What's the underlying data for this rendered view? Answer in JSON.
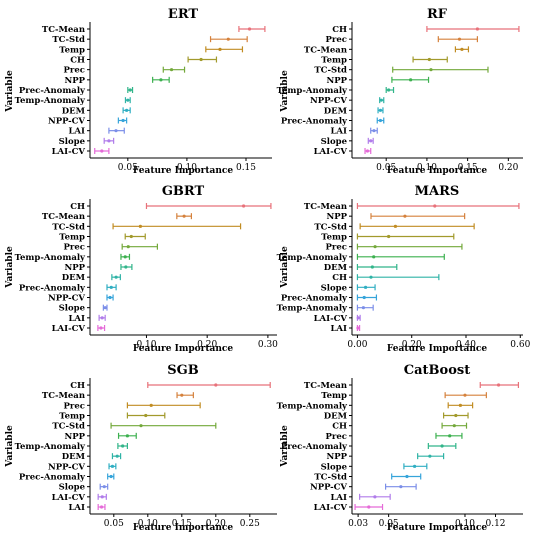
{
  "figure": {
    "panels": [
      {
        "key": "ert",
        "title": "ERT",
        "xlabel": "Feature Importance",
        "ylabel": "Variable"
      },
      {
        "key": "rf",
        "title": "RF",
        "xlabel": "Feature Importance",
        "ylabel": "Variable"
      },
      {
        "key": "gbrt",
        "title": "GBRT",
        "xlabel": "Feature Importance",
        "ylabel": "Variable"
      },
      {
        "key": "mars",
        "title": "MARS",
        "xlabel": "Feature Importance",
        "ylabel": "Variable"
      },
      {
        "key": "sgb",
        "title": "SGB",
        "xlabel": "Feature Importance",
        "ylabel": "Variable"
      },
      {
        "key": "catboost",
        "title": "CatBoost",
        "xlabel": "Feature Importance",
        "ylabel": "Variable"
      }
    ]
  },
  "chart_data": [
    {
      "type": "errorbar",
      "title": "ERT",
      "xlabel": "Feature Importance",
      "ylabel": "Variable",
      "xlim": [
        0.018,
        0.172
      ],
      "xticks": [
        0.05,
        0.1,
        0.15
      ],
      "xtick_labels": [
        "0.05",
        "0.10",
        "0.15"
      ],
      "points": [
        {
          "variable": "TC-Mean",
          "mean": 0.153,
          "low": 0.144,
          "high": 0.166,
          "color": "#E8727A"
        },
        {
          "variable": "TC-Std",
          "mean": 0.135,
          "low": 0.12,
          "high": 0.151,
          "color": "#D5813C"
        },
        {
          "variable": "Temp",
          "mean": 0.128,
          "low": 0.116,
          "high": 0.147,
          "color": "#C18C22"
        },
        {
          "variable": "CH",
          "mean": 0.112,
          "low": 0.101,
          "high": 0.125,
          "color": "#A29A2C"
        },
        {
          "variable": "Prec",
          "mean": 0.087,
          "low": 0.08,
          "high": 0.098,
          "color": "#73A83A"
        },
        {
          "variable": "NPP",
          "mean": 0.078,
          "low": 0.071,
          "high": 0.085,
          "color": "#3CB04F"
        },
        {
          "variable": "Prec-Anomaly",
          "mean": 0.052,
          "low": 0.05,
          "high": 0.054,
          "color": "#32B58A"
        },
        {
          "variable": "Temp-Anomaly",
          "mean": 0.05,
          "low": 0.048,
          "high": 0.052,
          "color": "#2FB3A6"
        },
        {
          "variable": "DEM",
          "mean": 0.049,
          "low": 0.046,
          "high": 0.052,
          "color": "#2FAEC2"
        },
        {
          "variable": "NPP-CV",
          "mean": 0.046,
          "low": 0.042,
          "high": 0.049,
          "color": "#36A4DA"
        },
        {
          "variable": "LAI",
          "mean": 0.04,
          "low": 0.034,
          "high": 0.047,
          "color": "#7B8EE8"
        },
        {
          "variable": "Slope",
          "mean": 0.034,
          "low": 0.03,
          "high": 0.038,
          "color": "#B07CEA"
        },
        {
          "variable": "LAI-CV",
          "mean": 0.028,
          "low": 0.022,
          "high": 0.034,
          "color": "#E56BD8"
        }
      ]
    },
    {
      "type": "errorbar",
      "title": "RF",
      "xlabel": "Feature Importance",
      "ylabel": "Variable",
      "xlim": [
        0.008,
        0.218
      ],
      "xticks": [
        0.05,
        0.1,
        0.15,
        0.2
      ],
      "xtick_labels": [
        "0.05",
        "0.10",
        "0.15",
        "0.20"
      ],
      "points": [
        {
          "variable": "CH",
          "mean": 0.162,
          "low": 0.1,
          "high": 0.213,
          "color": "#E8727A"
        },
        {
          "variable": "Prec",
          "mean": 0.14,
          "low": 0.114,
          "high": 0.162,
          "color": "#D5813C"
        },
        {
          "variable": "TC-Mean",
          "mean": 0.143,
          "low": 0.135,
          "high": 0.151,
          "color": "#C18C22"
        },
        {
          "variable": "Temp",
          "mean": 0.103,
          "low": 0.083,
          "high": 0.125,
          "color": "#A29A2C"
        },
        {
          "variable": "TC-Std",
          "mean": 0.105,
          "low": 0.058,
          "high": 0.175,
          "color": "#73A83A"
        },
        {
          "variable": "NPP",
          "mean": 0.08,
          "low": 0.057,
          "high": 0.102,
          "color": "#3CB04F"
        },
        {
          "variable": "Temp-Anomaly",
          "mean": 0.053,
          "low": 0.05,
          "high": 0.059,
          "color": "#32B58A"
        },
        {
          "variable": "NPP-CV",
          "mean": 0.044,
          "low": 0.042,
          "high": 0.047,
          "color": "#2FB3A6"
        },
        {
          "variable": "DEM",
          "mean": 0.043,
          "low": 0.04,
          "high": 0.046,
          "color": "#2FAEC2"
        },
        {
          "variable": "Prec-Anomaly",
          "mean": 0.043,
          "low": 0.039,
          "high": 0.047,
          "color": "#36A4DA"
        },
        {
          "variable": "LAI",
          "mean": 0.035,
          "low": 0.031,
          "high": 0.039,
          "color": "#7B8EE8"
        },
        {
          "variable": "Slope",
          "mean": 0.031,
          "low": 0.028,
          "high": 0.034,
          "color": "#B07CEA"
        },
        {
          "variable": "LAI-CV",
          "mean": 0.027,
          "low": 0.024,
          "high": 0.031,
          "color": "#E56BD8"
        }
      ]
    },
    {
      "type": "errorbar",
      "title": "GBRT",
      "xlabel": "Feature Importance",
      "ylabel": "Variable",
      "xlim": [
        0.007,
        0.315
      ],
      "xticks": [
        0.1,
        0.2,
        0.3
      ],
      "xtick_labels": [
        "0.10",
        "0.20",
        "0.30"
      ],
      "points": [
        {
          "variable": "CH",
          "mean": 0.26,
          "low": 0.1,
          "high": 0.305,
          "color": "#E8727A"
        },
        {
          "variable": "TC-Mean",
          "mean": 0.162,
          "low": 0.15,
          "high": 0.174,
          "color": "#D5813C"
        },
        {
          "variable": "TC-Std",
          "mean": 0.09,
          "low": 0.045,
          "high": 0.255,
          "color": "#C18C22"
        },
        {
          "variable": "Temp",
          "mean": 0.075,
          "low": 0.065,
          "high": 0.098,
          "color": "#A29A2C"
        },
        {
          "variable": "Prec",
          "mean": 0.07,
          "low": 0.06,
          "high": 0.118,
          "color": "#73A83A"
        },
        {
          "variable": "Temp-Anomaly",
          "mean": 0.065,
          "low": 0.058,
          "high": 0.072,
          "color": "#3CB04F"
        },
        {
          "variable": "NPP",
          "mean": 0.066,
          "low": 0.058,
          "high": 0.076,
          "color": "#32B58A"
        },
        {
          "variable": "DEM",
          "mean": 0.05,
          "low": 0.043,
          "high": 0.057,
          "color": "#2FB3A6"
        },
        {
          "variable": "Prec-Anomaly",
          "mean": 0.042,
          "low": 0.035,
          "high": 0.05,
          "color": "#2FAEC2"
        },
        {
          "variable": "NPP-CV",
          "mean": 0.04,
          "low": 0.035,
          "high": 0.045,
          "color": "#36A4DA"
        },
        {
          "variable": "Slope",
          "mean": 0.032,
          "low": 0.029,
          "high": 0.035,
          "color": "#7B8EE8"
        },
        {
          "variable": "LAI",
          "mean": 0.027,
          "low": 0.022,
          "high": 0.032,
          "color": "#B07CEA"
        },
        {
          "variable": "LAI-CV",
          "mean": 0.025,
          "low": 0.02,
          "high": 0.031,
          "color": "#E56BD8"
        }
      ]
    },
    {
      "type": "errorbar",
      "title": "MARS",
      "xlabel": "Feature Importance",
      "ylabel": "Variable",
      "xlim": [
        -0.02,
        0.61
      ],
      "xticks": [
        0.0,
        0.2,
        0.4,
        0.6
      ],
      "xtick_labels": [
        "0.00",
        "0.20",
        "0.40",
        "0.60"
      ],
      "points": [
        {
          "variable": "TC-Mean",
          "mean": 0.285,
          "low": 0.0,
          "high": 0.595,
          "color": "#E8727A"
        },
        {
          "variable": "NPP",
          "mean": 0.175,
          "low": 0.05,
          "high": 0.395,
          "color": "#D5813C"
        },
        {
          "variable": "TC-Std",
          "mean": 0.14,
          "low": 0.01,
          "high": 0.43,
          "color": "#C18C22"
        },
        {
          "variable": "Temp",
          "mean": 0.115,
          "low": 0.0,
          "high": 0.355,
          "color": "#A29A2C"
        },
        {
          "variable": "Prec",
          "mean": 0.065,
          "low": 0.0,
          "high": 0.385,
          "color": "#73A83A"
        },
        {
          "variable": "Temp-Anomaly",
          "mean": 0.06,
          "low": 0.0,
          "high": 0.32,
          "color": "#3CB04F"
        },
        {
          "variable": "DEM",
          "mean": 0.055,
          "low": 0.0,
          "high": 0.145,
          "color": "#32B58A"
        },
        {
          "variable": "CH",
          "mean": 0.05,
          "low": 0.0,
          "high": 0.3,
          "color": "#2FB3A6"
        },
        {
          "variable": "Slope",
          "mean": 0.03,
          "low": 0.0,
          "high": 0.065,
          "color": "#2FAEC2"
        },
        {
          "variable": "Prec-Anomaly",
          "mean": 0.025,
          "low": 0.0,
          "high": 0.07,
          "color": "#36A4DA"
        },
        {
          "variable": "Temp-Anomaly",
          "mean": 0.022,
          "low": 0.0,
          "high": 0.058,
          "color": "#7B8EE8"
        },
        {
          "variable": "LAI-CV",
          "mean": 0.003,
          "low": 0.0,
          "high": 0.01,
          "color": "#B07CEA"
        },
        {
          "variable": "LAI",
          "mean": 0.002,
          "low": 0.0,
          "high": 0.008,
          "color": "#E56BD8"
        }
      ]
    },
    {
      "type": "errorbar",
      "title": "SGB",
      "xlabel": "Feature Importance",
      "ylabel": "Variable",
      "xlim": [
        0.015,
        0.29
      ],
      "xticks": [
        0.05,
        0.1,
        0.15,
        0.2,
        0.25
      ],
      "xtick_labels": [
        "0.05",
        "0.10",
        "0.15",
        "0.20",
        "0.25"
      ],
      "points": [
        {
          "variable": "CH",
          "mean": 0.2,
          "low": 0.1,
          "high": 0.28,
          "color": "#E8727A"
        },
        {
          "variable": "TC-Mean",
          "mean": 0.15,
          "low": 0.143,
          "high": 0.167,
          "color": "#D5813C"
        },
        {
          "variable": "Prec",
          "mean": 0.105,
          "low": 0.07,
          "high": 0.177,
          "color": "#C18C22"
        },
        {
          "variable": "Temp",
          "mean": 0.097,
          "low": 0.07,
          "high": 0.125,
          "color": "#A29A2C"
        },
        {
          "variable": "TC-Std",
          "mean": 0.09,
          "low": 0.046,
          "high": 0.2,
          "color": "#73A83A"
        },
        {
          "variable": "NPP",
          "mean": 0.07,
          "low": 0.057,
          "high": 0.083,
          "color": "#3CB04F"
        },
        {
          "variable": "Temp-Anomaly",
          "mean": 0.063,
          "low": 0.056,
          "high": 0.07,
          "color": "#32B58A"
        },
        {
          "variable": "DEM",
          "mean": 0.055,
          "low": 0.048,
          "high": 0.06,
          "color": "#2FB3A6"
        },
        {
          "variable": "NPP-CV",
          "mean": 0.048,
          "low": 0.043,
          "high": 0.053,
          "color": "#2FAEC2"
        },
        {
          "variable": "Prec-Anomaly",
          "mean": 0.046,
          "low": 0.041,
          "high": 0.05,
          "color": "#36A4DA"
        },
        {
          "variable": "Slope",
          "mean": 0.036,
          "low": 0.03,
          "high": 0.041,
          "color": "#7B8EE8"
        },
        {
          "variable": "LAI-CV",
          "mean": 0.033,
          "low": 0.027,
          "high": 0.039,
          "color": "#B07CEA"
        },
        {
          "variable": "LAI",
          "mean": 0.032,
          "low": 0.027,
          "high": 0.037,
          "color": "#E56BD8"
        }
      ]
    },
    {
      "type": "errorbar",
      "title": "CatBoost",
      "xlabel": "Feature Importance",
      "ylabel": "Variable",
      "xlim": [
        0.026,
        0.138
      ],
      "xticks": [
        0.03,
        0.05,
        0.1,
        0.12
      ],
      "xtick_labels": [
        "0.03",
        "0.05",
        "0.10",
        "0.12"
      ],
      "points": [
        {
          "variable": "TC-Mean",
          "mean": 0.122,
          "low": 0.11,
          "high": 0.135,
          "color": "#E8727A"
        },
        {
          "variable": "Temp",
          "mean": 0.1,
          "low": 0.087,
          "high": 0.114,
          "color": "#D5813C"
        },
        {
          "variable": "Temp-Anomaly",
          "mean": 0.097,
          "low": 0.089,
          "high": 0.105,
          "color": "#C18C22"
        },
        {
          "variable": "DEM",
          "mean": 0.094,
          "low": 0.086,
          "high": 0.102,
          "color": "#A29A2C"
        },
        {
          "variable": "CH",
          "mean": 0.093,
          "low": 0.085,
          "high": 0.101,
          "color": "#73A83A"
        },
        {
          "variable": "Prec",
          "mean": 0.09,
          "low": 0.081,
          "high": 0.098,
          "color": "#3CB04F"
        },
        {
          "variable": "Prec-Anomaly",
          "mean": 0.085,
          "low": 0.076,
          "high": 0.094,
          "color": "#32B58A"
        },
        {
          "variable": "NPP",
          "mean": 0.077,
          "low": 0.069,
          "high": 0.086,
          "color": "#2FB3A6"
        },
        {
          "variable": "Slope",
          "mean": 0.067,
          "low": 0.06,
          "high": 0.075,
          "color": "#2FAEC2"
        },
        {
          "variable": "TC-Std",
          "mean": 0.062,
          "low": 0.052,
          "high": 0.071,
          "color": "#36A4DA"
        },
        {
          "variable": "NPP-CV",
          "mean": 0.058,
          "low": 0.048,
          "high": 0.068,
          "color": "#7B8EE8"
        },
        {
          "variable": "LAI",
          "mean": 0.041,
          "low": 0.031,
          "high": 0.051,
          "color": "#B07CEA"
        },
        {
          "variable": "LAI-CV",
          "mean": 0.037,
          "low": 0.028,
          "high": 0.046,
          "color": "#E56BD8"
        }
      ]
    }
  ]
}
